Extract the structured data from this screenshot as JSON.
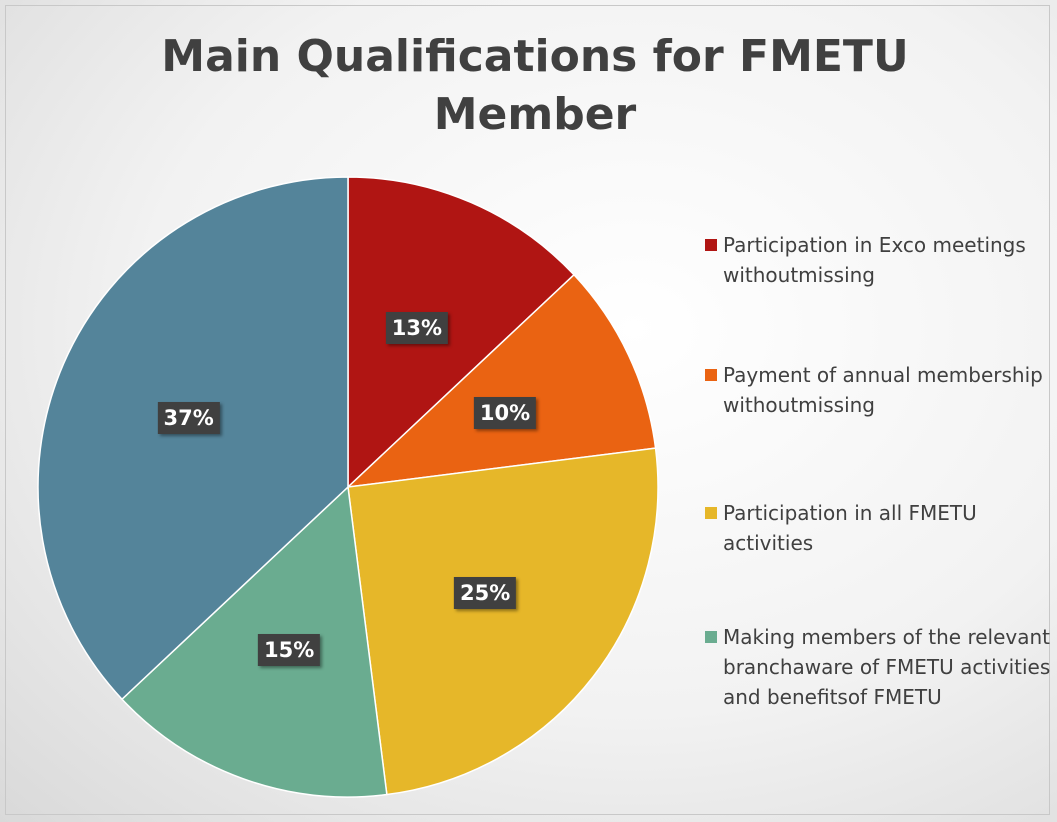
{
  "chart_data": {
    "type": "pie",
    "title": "Main Qualifications for FMETU Member",
    "categories": [
      "Participation in Exco meetings withoutmissing",
      "Payment of annual membership withoutmissing",
      "Participation in all FMETU activities",
      "Making members of the relevant branchaware of FMETU activities and benefitsof FMETU",
      null
    ],
    "values": [
      13,
      10,
      25,
      15,
      37
    ],
    "value_labels": [
      "13%",
      "10%",
      "25%",
      "15%",
      "37%"
    ],
    "colors": [
      "#b01513",
      "#ea6312",
      "#e6b729",
      "#6aac90",
      "#54849a"
    ],
    "legend": "right"
  }
}
